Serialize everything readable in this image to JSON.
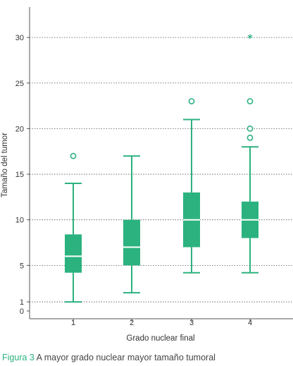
{
  "chart_data": {
    "type": "boxplot",
    "xlabel": "Grado nuclear final",
    "ylabel": "Tamaño del tumor",
    "categories": [
      "1",
      "2",
      "3",
      "4"
    ],
    "yticks": [
      0,
      1,
      5,
      10,
      15,
      20,
      25,
      30
    ],
    "ylim": [
      0,
      31
    ],
    "grid": "horizontal dotted",
    "boxes": [
      {
        "category": "1",
        "whisker_low": 1,
        "q1": 4.2,
        "median": 6,
        "q3": 8.4,
        "whisker_high": 14,
        "outliers": [
          17
        ],
        "extremes": []
      },
      {
        "category": "2",
        "whisker_low": 2,
        "q1": 5,
        "median": 7,
        "q3": 10,
        "whisker_high": 17,
        "outliers": [],
        "extremes": []
      },
      {
        "category": "3",
        "whisker_low": 4.2,
        "q1": 7,
        "median": 10,
        "q3": 13,
        "whisker_high": 21,
        "outliers": [
          23
        ],
        "extremes": []
      },
      {
        "category": "4",
        "whisker_low": 4.2,
        "q1": 8,
        "median": 10,
        "q3": 12,
        "whisker_high": 18,
        "outliers": [
          23,
          20,
          19
        ],
        "extremes": [
          30
        ]
      }
    ],
    "colors": {
      "box": "#2bb27f",
      "grid": "#555555",
      "axis": "#555555"
    }
  },
  "caption": {
    "figure_label": "Figura 3",
    "text": " A mayor grado nuclear mayor tamaño tumoral"
  }
}
